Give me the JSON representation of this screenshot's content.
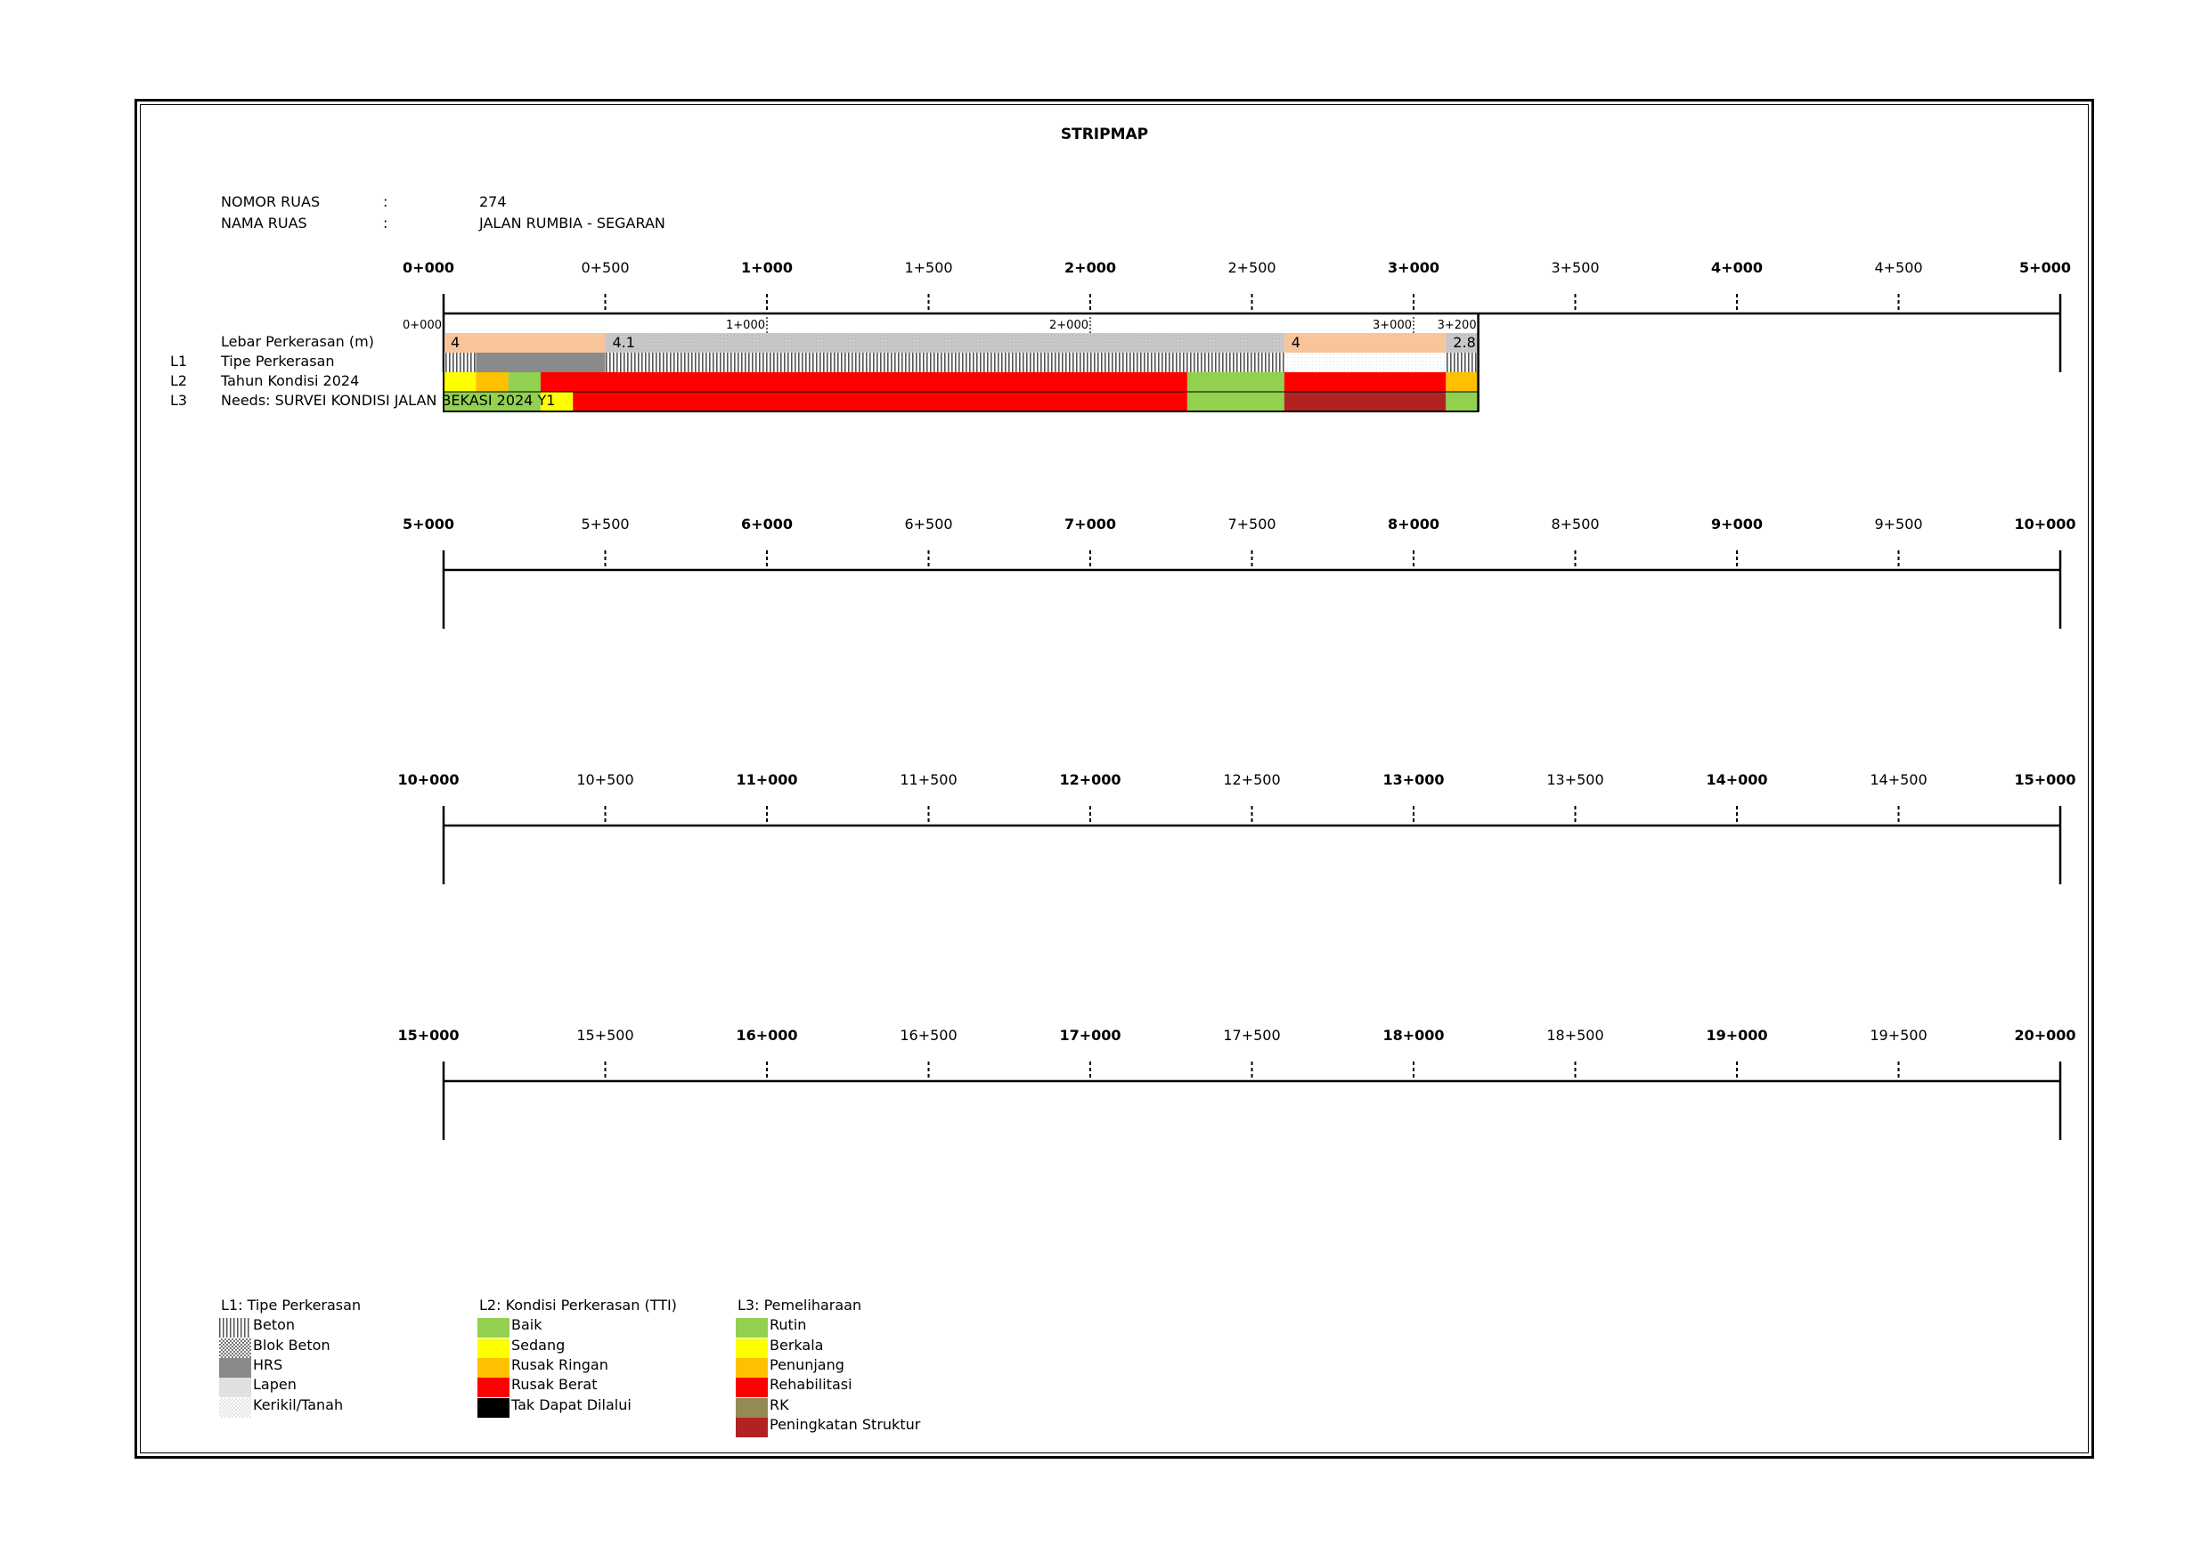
{
  "title": "STRIPMAP",
  "info": {
    "nomor_label": "NOMOR RUAS",
    "nomor_colon": ":",
    "nomor_value": "274",
    "nama_label": "NAMA RUAS",
    "nama_colon": ":",
    "nama_value": "JALAN RUMBIA - SEGARAN"
  },
  "rows": [
    {
      "prefix": "",
      "label": "Lebar Perkerasan (m)"
    },
    {
      "prefix": "L1",
      "label": "Tipe Perkerasan"
    },
    {
      "prefix": "L2",
      "label": "Tahun Kondisi 2024"
    },
    {
      "prefix": "L3",
      "label": "Needs: SURVEI KONDISI JALAN BEKASI 2024 Y1"
    }
  ],
  "chart_data": {
    "type": "stripmap",
    "unit": "km",
    "axis_rows": [
      {
        "start": 0,
        "end": 5,
        "labels": [
          "0+000",
          "0+500",
          "1+000",
          "1+500",
          "2+000",
          "2+500",
          "3+000",
          "3+500",
          "4+000",
          "4+500",
          "5+000"
        ]
      },
      {
        "start": 5,
        "end": 10,
        "labels": [
          "5+000",
          "5+500",
          "6+000",
          "6+500",
          "7+000",
          "7+500",
          "8+000",
          "8+500",
          "9+000",
          "9+500",
          "10+000"
        ]
      },
      {
        "start": 10,
        "end": 15,
        "labels": [
          "10+000",
          "10+500",
          "11+000",
          "11+500",
          "12+000",
          "12+500",
          "13+000",
          "13+500",
          "14+000",
          "14+500",
          "15+000"
        ]
      },
      {
        "start": 15,
        "end": 20,
        "labels": [
          "15+000",
          "15+500",
          "16+000",
          "16+500",
          "17+000",
          "17+500",
          "18+000",
          "18+500",
          "19+000",
          "19+500",
          "20+000"
        ]
      }
    ],
    "road_end_km": 3.2,
    "sub_ticks": [
      {
        "km": 0,
        "label": "0+000"
      },
      {
        "km": 1,
        "label": "1+000"
      },
      {
        "km": 2,
        "label": "2+000"
      },
      {
        "km": 3,
        "label": "3+000"
      },
      {
        "km": 3.2,
        "label": "3+200"
      }
    ],
    "width_segments": [
      {
        "start": 0,
        "end": 0.5,
        "value": "4",
        "color": "#F8C49A"
      },
      {
        "start": 0.5,
        "end": 2.6,
        "value": "4.1",
        "color": "#C8C8C8"
      },
      {
        "start": 2.6,
        "end": 3.1,
        "value": "4",
        "color": "#F8C49A"
      },
      {
        "start": 3.1,
        "end": 3.2,
        "value": "2.8",
        "color": "#C8C8C8"
      }
    ],
    "type_segments": [
      {
        "start": 0,
        "end": 0.1,
        "type": "Beton"
      },
      {
        "start": 0.1,
        "end": 0.5,
        "type": "HRS"
      },
      {
        "start": 0.5,
        "end": 2.6,
        "type": "Beton"
      },
      {
        "start": 2.6,
        "end": 3.1,
        "type": "Kerikil/Tanah"
      },
      {
        "start": 3.1,
        "end": 3.2,
        "type": "Beton"
      }
    ],
    "condition_segments": [
      {
        "start": 0,
        "end": 0.1,
        "condition": "Sedang",
        "color": "#FFFF00"
      },
      {
        "start": 0.1,
        "end": 0.2,
        "condition": "Rusak Ringan",
        "color": "#FFC000"
      },
      {
        "start": 0.2,
        "end": 0.3,
        "condition": "Baik",
        "color": "#92D050"
      },
      {
        "start": 0.3,
        "end": 2.3,
        "condition": "Rusak Berat",
        "color": "#FF0000"
      },
      {
        "start": 2.3,
        "end": 2.6,
        "condition": "Baik",
        "color": "#92D050"
      },
      {
        "start": 2.6,
        "end": 3.1,
        "condition": "Rusak Berat",
        "color": "#FF0000"
      },
      {
        "start": 3.1,
        "end": 3.2,
        "condition": "Rusak Ringan",
        "color": "#FFC000"
      }
    ],
    "needs_segments": [
      {
        "start": 0,
        "end": 0.3,
        "need": "Rutin",
        "color": "#92D050"
      },
      {
        "start": 0.3,
        "end": 0.4,
        "need": "Berkala",
        "color": "#FFFF00"
      },
      {
        "start": 0.4,
        "end": 2.3,
        "need": "Rehabilitasi",
        "color": "#FF0000"
      },
      {
        "start": 2.3,
        "end": 2.6,
        "need": "Rutin",
        "color": "#92D050"
      },
      {
        "start": 2.6,
        "end": 3.1,
        "need": "Peningkatan Struktur",
        "color": "#B22222"
      },
      {
        "start": 3.1,
        "end": 3.2,
        "need": "Rutin",
        "color": "#92D050"
      }
    ]
  },
  "legend": {
    "l1_title": "L1: Tipe Perkerasan",
    "l1_items": [
      {
        "label": "Beton",
        "pattern": "beton"
      },
      {
        "label": "Blok Beton",
        "pattern": "blok"
      },
      {
        "label": "HRS",
        "pattern": "hrs"
      },
      {
        "label": "Lapen",
        "pattern": "lapen"
      },
      {
        "label": "Kerikil/Tanah",
        "pattern": "kerikil"
      }
    ],
    "l2_title": "L2: Kondisi Perkerasan (TTI)",
    "l2_items": [
      {
        "label": "Baik",
        "color": "#92D050"
      },
      {
        "label": "Sedang",
        "color": "#FFFF00"
      },
      {
        "label": "Rusak Ringan",
        "color": "#FFC000"
      },
      {
        "label": "Rusak Berat",
        "color": "#FF0000"
      },
      {
        "label": "Tak Dapat Dilalui",
        "color": "#000000"
      }
    ],
    "l3_title": "L3: Pemeliharaan",
    "l3_items": [
      {
        "label": "Rutin",
        "color": "#92D050"
      },
      {
        "label": "Berkala",
        "color": "#FFFF00"
      },
      {
        "label": "Penunjang",
        "color": "#FFC000"
      },
      {
        "label": "Rehabilitasi",
        "color": "#FF0000"
      },
      {
        "label": "RK",
        "color": "#948A54"
      },
      {
        "label": "Peningkatan Struktur",
        "color": "#B22222"
      }
    ]
  }
}
